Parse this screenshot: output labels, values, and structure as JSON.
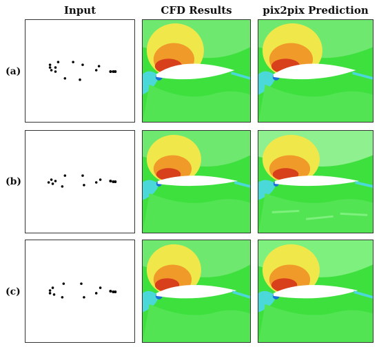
{
  "columns": [
    {
      "label": "Input"
    },
    {
      "label": "CFD Results"
    },
    {
      "label": "pix2pix Prediction"
    }
  ],
  "rows": [
    {
      "label": "(a)"
    },
    {
      "label": "(b)"
    },
    {
      "label": "(c)"
    }
  ],
  "colors": {
    "background_green": "#3ee03e",
    "light_green": "#7ef07e",
    "yellow": "#f0e84a",
    "orange": "#f09a2a",
    "red": "#d8401c",
    "cyan": "#4ad8d8",
    "blue": "#1a6ed8",
    "airfoil": "#ffffff"
  }
}
